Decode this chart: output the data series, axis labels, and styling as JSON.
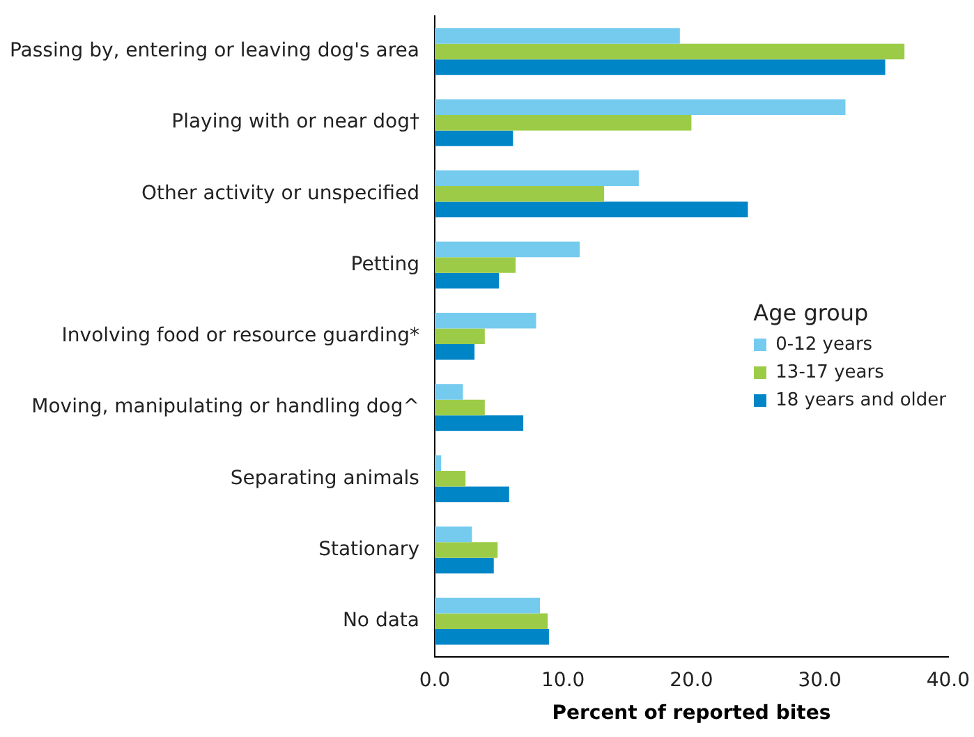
{
  "chart_data": {
    "type": "bar",
    "orientation": "horizontal",
    "xlabel": "Percent of reported bites",
    "legend_title": "Age group",
    "legend": "right",
    "grid": false,
    "categories": [
      "Passing by, entering or leaving dog's area",
      "Playing with or near dog†",
      "Other activity or unspecified",
      "Petting",
      "Involving food or resource guarding*",
      "Moving, manipulating or handling dog^",
      "Separating animals",
      "Stationary",
      "No data"
    ],
    "xlim": [
      0,
      40
    ],
    "xticks": [
      {
        "value": 0,
        "label": "0.0"
      },
      {
        "value": 10,
        "label": "10.0"
      },
      {
        "value": 20,
        "label": "20.0"
      },
      {
        "value": 30,
        "label": "30.0"
      },
      {
        "value": 40,
        "label": "40.0"
      }
    ],
    "series": [
      {
        "name": "0-12 years",
        "color": "#74cbee",
        "values": [
          19.1,
          32.0,
          15.9,
          11.3,
          7.9,
          2.2,
          0.5,
          2.9,
          8.2
        ]
      },
      {
        "name": "13-17 years",
        "color": "#9ccc47",
        "values": [
          36.6,
          20.0,
          13.2,
          6.3,
          3.9,
          3.9,
          2.4,
          4.9,
          8.8
        ]
      },
      {
        "name": "18 years and older",
        "color": "#0085c7",
        "values": [
          35.1,
          6.1,
          24.4,
          5.0,
          3.1,
          6.9,
          5.8,
          4.6,
          8.9
        ]
      }
    ]
  }
}
